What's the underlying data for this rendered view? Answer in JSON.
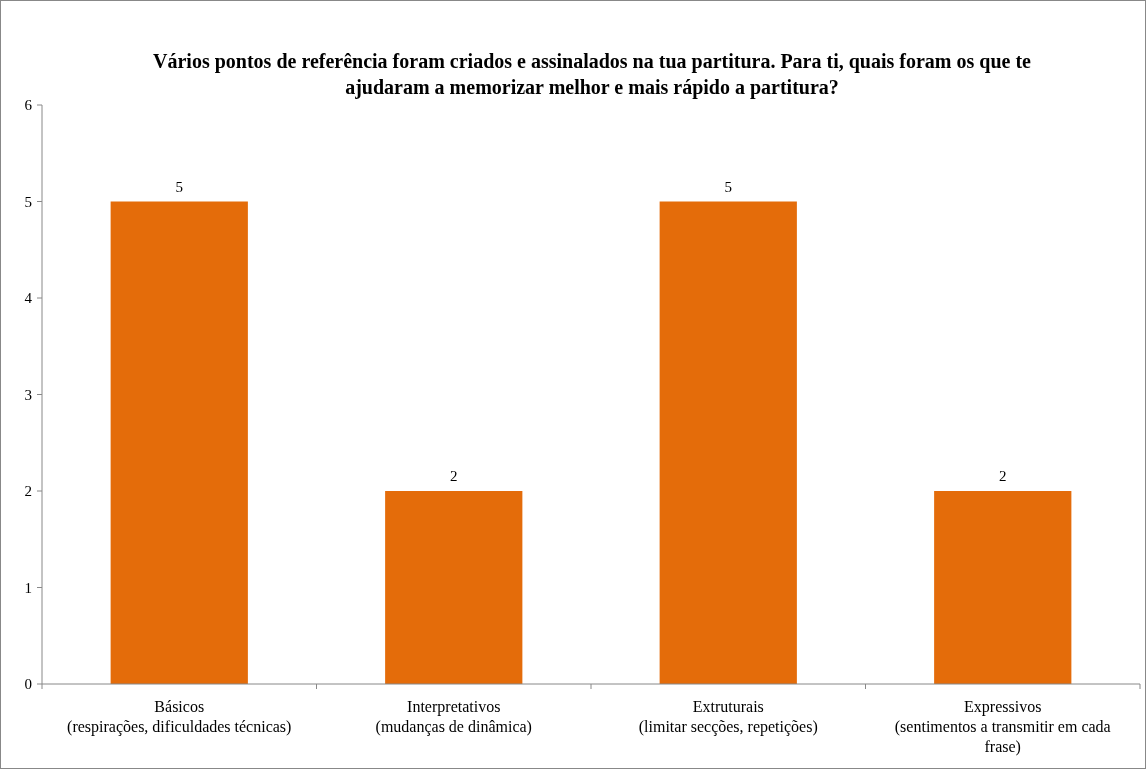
{
  "chart_data": {
    "type": "bar",
    "title": "Vários pontos de referência foram criados e assinalados na tua partitura. Para ti, quais foram os que te ajudaram a memorizar melhor e mais rápido a partitura?",
    "categories": [
      "Básicos\n(respirações, dificuldades técnicas)",
      "Interpretativos\n(mudanças de dinâmica)",
      "Extruturais\n(limitar secções, repetições)",
      "Expressivos\n(sentimentos a transmitir em cada frase)"
    ],
    "values": [
      5,
      2,
      5,
      2
    ],
    "color": "#e46c0a",
    "ylim": [
      0,
      6
    ],
    "yticks": [
      0,
      1,
      2,
      3,
      4,
      5,
      6
    ],
    "grid": false,
    "data_labels": true
  }
}
